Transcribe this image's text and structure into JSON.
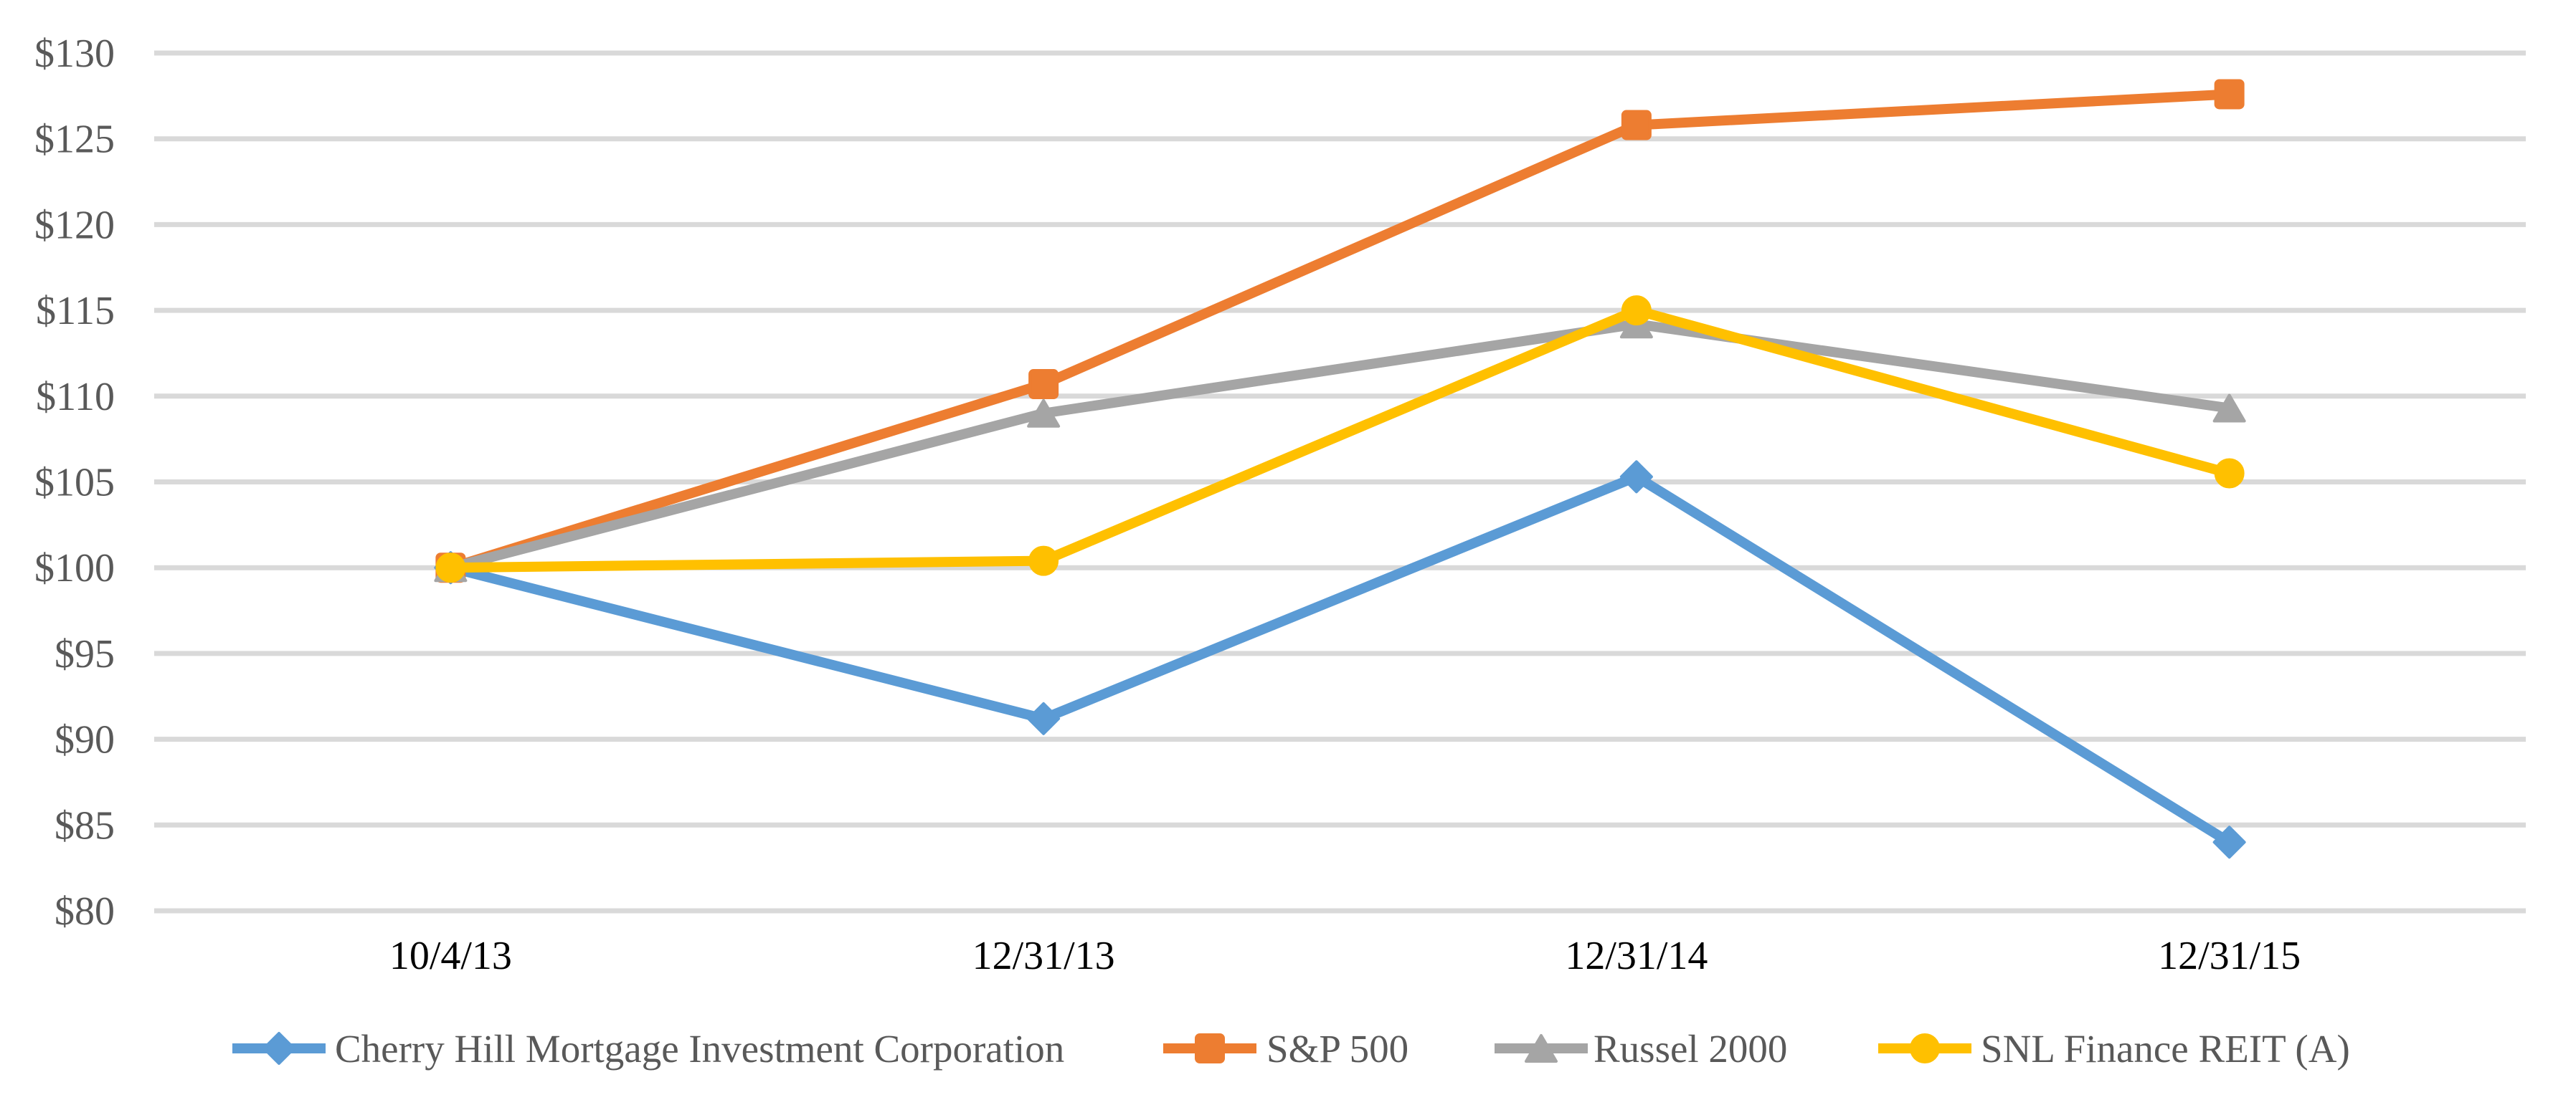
{
  "chart_data": {
    "type": "line",
    "title": "",
    "xlabel": "",
    "ylabel": "",
    "categories": [
      "10/4/13",
      "12/31/13",
      "12/31/14",
      "12/31/15"
    ],
    "series": [
      {
        "name": "Cherry Hill Mortgage Investment Corporation",
        "color": "#5B9BD5",
        "marker": "diamond",
        "values": [
          100.0,
          91.2,
          105.3,
          84.0
        ]
      },
      {
        "name": "S&P 500",
        "color": "#ED7D31",
        "marker": "square",
        "values": [
          100.0,
          110.7,
          125.8,
          127.6
        ]
      },
      {
        "name": "Russel 2000",
        "color": "#A5A5A5",
        "marker": "triangle",
        "values": [
          100.0,
          109.0,
          114.2,
          109.3
        ]
      },
      {
        "name": "SNL Finance REIT (A)",
        "color": "#FFC000",
        "marker": "circle",
        "values": [
          100.0,
          100.4,
          115.0,
          105.5
        ]
      }
    ],
    "ylim": [
      80,
      130
    ],
    "ytick_step": 5,
    "ytick_labels": [
      "$80",
      "$85",
      "$90",
      "$95",
      "$100",
      "$105",
      "$110",
      "$115",
      "$120",
      "$125",
      "$130"
    ],
    "grid": true,
    "legend_position": "bottom",
    "colors": {
      "gridline": "#D9D9D9",
      "y_tick_text": "#595959",
      "x_tick_text": "#000000",
      "legend_text": "#595959",
      "background": "#FFFFFF"
    }
  }
}
